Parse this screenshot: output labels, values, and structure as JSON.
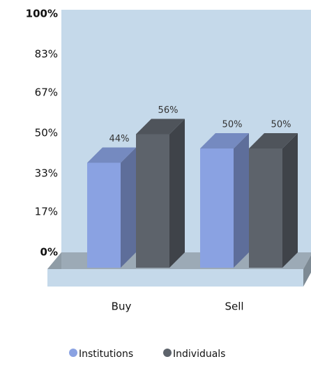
{
  "chart_data": {
    "type": "bar3d",
    "categories": [
      "Buy",
      "Sell"
    ],
    "series": [
      {
        "name": "Institutions",
        "color": "#8aa2e2",
        "values": [
          44,
          50
        ],
        "value_labels": [
          "44%",
          "50%"
        ]
      },
      {
        "name": "Individuals",
        "color": "#5d636b",
        "values": [
          56,
          50
        ],
        "value_labels": [
          "56%",
          "50%"
        ]
      }
    ],
    "ylim": [
      0,
      100
    ],
    "yticks": [
      {
        "value": 100,
        "label": "100%"
      },
      {
        "value": 83,
        "label": "83%"
      },
      {
        "value": 67,
        "label": "67%"
      },
      {
        "value": 50,
        "label": "50%"
      },
      {
        "value": 33,
        "label": "33%"
      },
      {
        "value": 17,
        "label": "17%"
      },
      {
        "value": 0,
        "label": "0%"
      }
    ],
    "grid": false,
    "legend": "bottom"
  }
}
